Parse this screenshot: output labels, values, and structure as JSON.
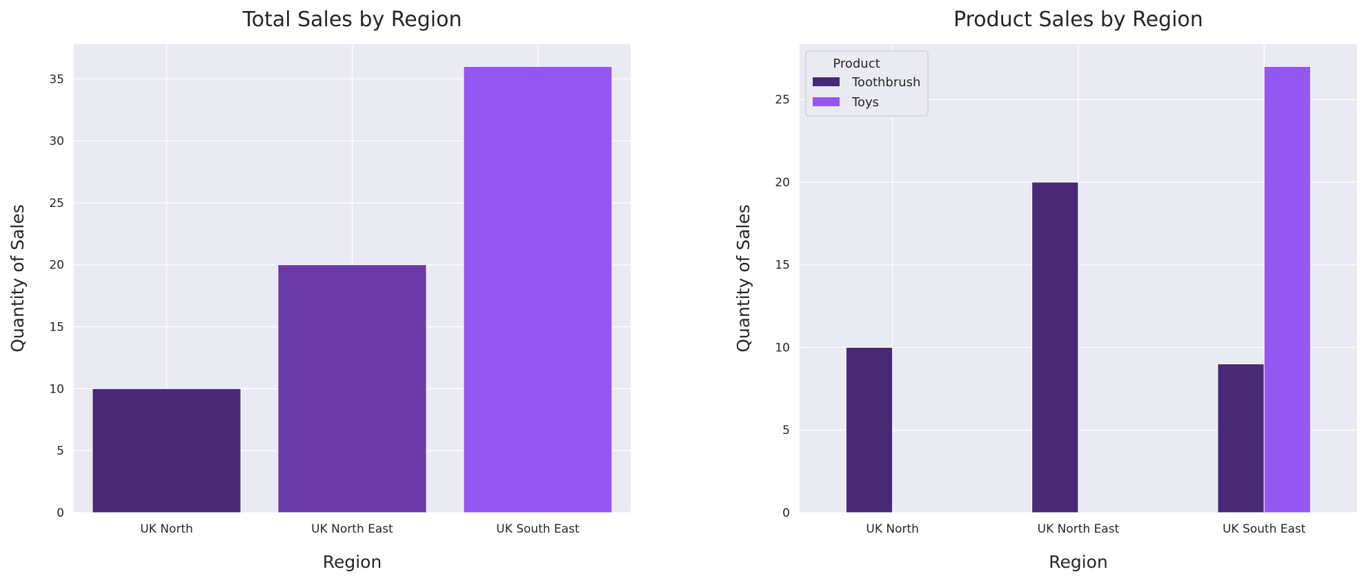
{
  "colors": {
    "background": "#eaeaf2",
    "grid": "#ffffff",
    "text": "#262626",
    "dark_purple": "#472a73",
    "mid_purple": "#6939a8",
    "light_purple": "#9457f3",
    "legend_bg": "#eaeaf2",
    "legend_border": "#cccccc"
  },
  "chart_data": [
    {
      "type": "bar",
      "title": "Total Sales by Region",
      "xlabel": "Region",
      "ylabel": "Quantity of Sales",
      "categories": [
        "UK North",
        "UK North East",
        "UK South East"
      ],
      "values": [
        10,
        20,
        36
      ],
      "bar_colors": [
        "#472a73",
        "#6939a8",
        "#9457f3"
      ],
      "ylim": [
        0,
        37.8
      ],
      "yticks": [
        0,
        5,
        10,
        15,
        20,
        25,
        30,
        35
      ],
      "grid": true
    },
    {
      "type": "bar",
      "title": "Product Sales by Region",
      "xlabel": "Region",
      "ylabel": "Quantity of Sales",
      "categories": [
        "UK North",
        "UK North East",
        "UK South East"
      ],
      "series": [
        {
          "name": "Toothbrush",
          "values": [
            10,
            20,
            9
          ],
          "color": "#472a73"
        },
        {
          "name": "Toys",
          "values": [
            0,
            0,
            27
          ],
          "color": "#9457f3"
        }
      ],
      "legend_title": "Product",
      "legend_position": "top-left",
      "ylim": [
        0,
        28.35
      ],
      "yticks": [
        0,
        5,
        10,
        15,
        20,
        25
      ],
      "grid": true
    }
  ]
}
